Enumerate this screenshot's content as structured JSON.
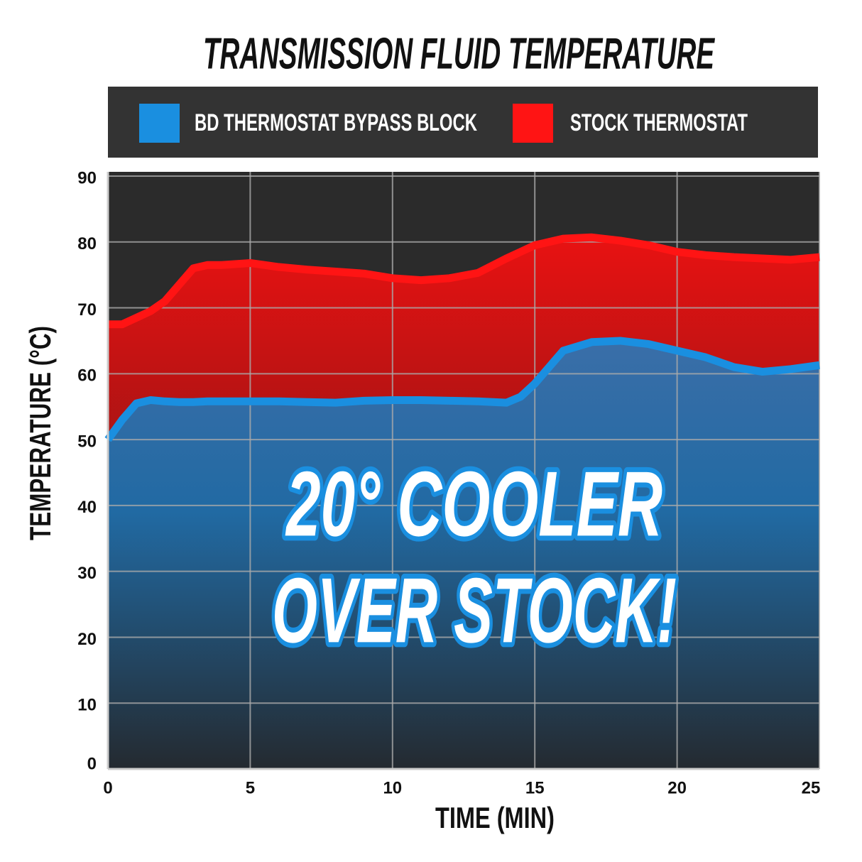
{
  "chart_data": {
    "type": "area",
    "title": "TRANSMISSION FLUID TEMPERATURE",
    "x_label": "TIME (MIN)",
    "y_label": "TEMPERATURE (°C)",
    "annotation": [
      "20° COOLER",
      "OVER STOCK!"
    ],
    "x": [
      0,
      0.5,
      1,
      1.5,
      2,
      2.5,
      3,
      3.5,
      4,
      5,
      6,
      7,
      8,
      9,
      10,
      11,
      12,
      13,
      14,
      14.5,
      15,
      15.5,
      16,
      17,
      18,
      19,
      20,
      21,
      22,
      23,
      24,
      25
    ],
    "series": [
      {
        "name": "STOCK THERMOSTAT",
        "color": "#ff1414",
        "values": [
          67.5,
          67.5,
          68.5,
          69.5,
          71,
          73.5,
          76,
          76.5,
          76.5,
          76.8,
          76.2,
          75.8,
          75.5,
          75.2,
          74.5,
          74.2,
          74.5,
          75.3,
          77.5,
          78.5,
          79.5,
          80,
          80.5,
          80.7,
          80.2,
          79.5,
          78.5,
          78,
          77.7,
          77.5,
          77.3,
          77.7
        ]
      },
      {
        "name": "BD THERMOSTAT BYPASS BLOCK",
        "color": "#1a8fe0",
        "values": [
          50,
          53,
          55.5,
          56,
          55.8,
          55.7,
          55.7,
          55.8,
          55.8,
          55.8,
          55.8,
          55.7,
          55.6,
          55.9,
          56,
          56,
          55.9,
          55.8,
          55.6,
          56.5,
          58.5,
          61,
          63.5,
          64.8,
          65,
          64.5,
          63.5,
          62.5,
          61,
          60.3,
          60.7,
          61.3
        ]
      }
    ],
    "xlim": [
      0,
      25
    ],
    "xticks": [
      0,
      5,
      10,
      15,
      20,
      25
    ],
    "ylim": [
      0,
      90
    ],
    "yticks": [
      0,
      10,
      20,
      30,
      40,
      50,
      60,
      70,
      80,
      90
    ],
    "grid": true
  }
}
